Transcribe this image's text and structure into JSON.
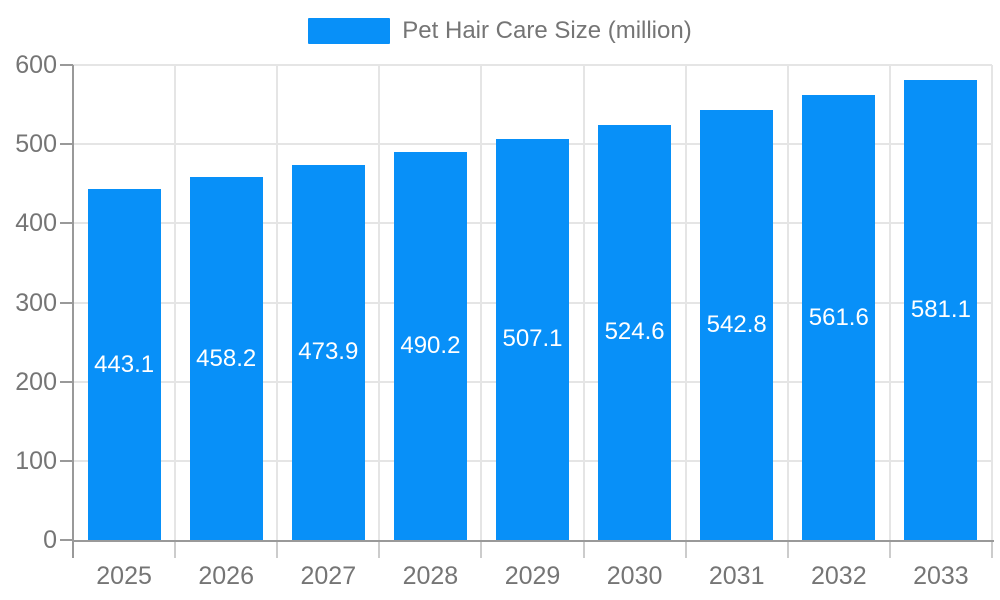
{
  "legend": {
    "label": "Pet Hair Care Size (million)"
  },
  "chart_data": {
    "type": "bar",
    "title": "",
    "legend": "Pet Hair Care Size (million)",
    "legend_position": "top-center",
    "categories": [
      "2025",
      "2026",
      "2027",
      "2028",
      "2029",
      "2030",
      "2031",
      "2032",
      "2033"
    ],
    "series": [
      {
        "name": "Pet Hair Care Size (million)",
        "values": [
          443.1,
          458.2,
          473.9,
          490.2,
          507.1,
          524.6,
          542.8,
          561.6,
          581.1
        ]
      }
    ],
    "value_labels": [
      "443.1",
      "458.2",
      "473.9",
      "490.2",
      "507.1",
      "524.6",
      "542.8",
      "561.6",
      "581.1"
    ],
    "xlabel": "",
    "ylabel": "",
    "ylim": [
      0,
      600
    ],
    "y_ticks": [
      0,
      100,
      200,
      300,
      400,
      500,
      600
    ],
    "grid": true,
    "colors": {
      "bar": "#0890f8",
      "grid": "#e5e5e5",
      "axis": "#999999",
      "x_tick": "#cccccc",
      "tick_label": "#757575",
      "bar_label": "#ffffff",
      "background": "#ffffff"
    }
  }
}
